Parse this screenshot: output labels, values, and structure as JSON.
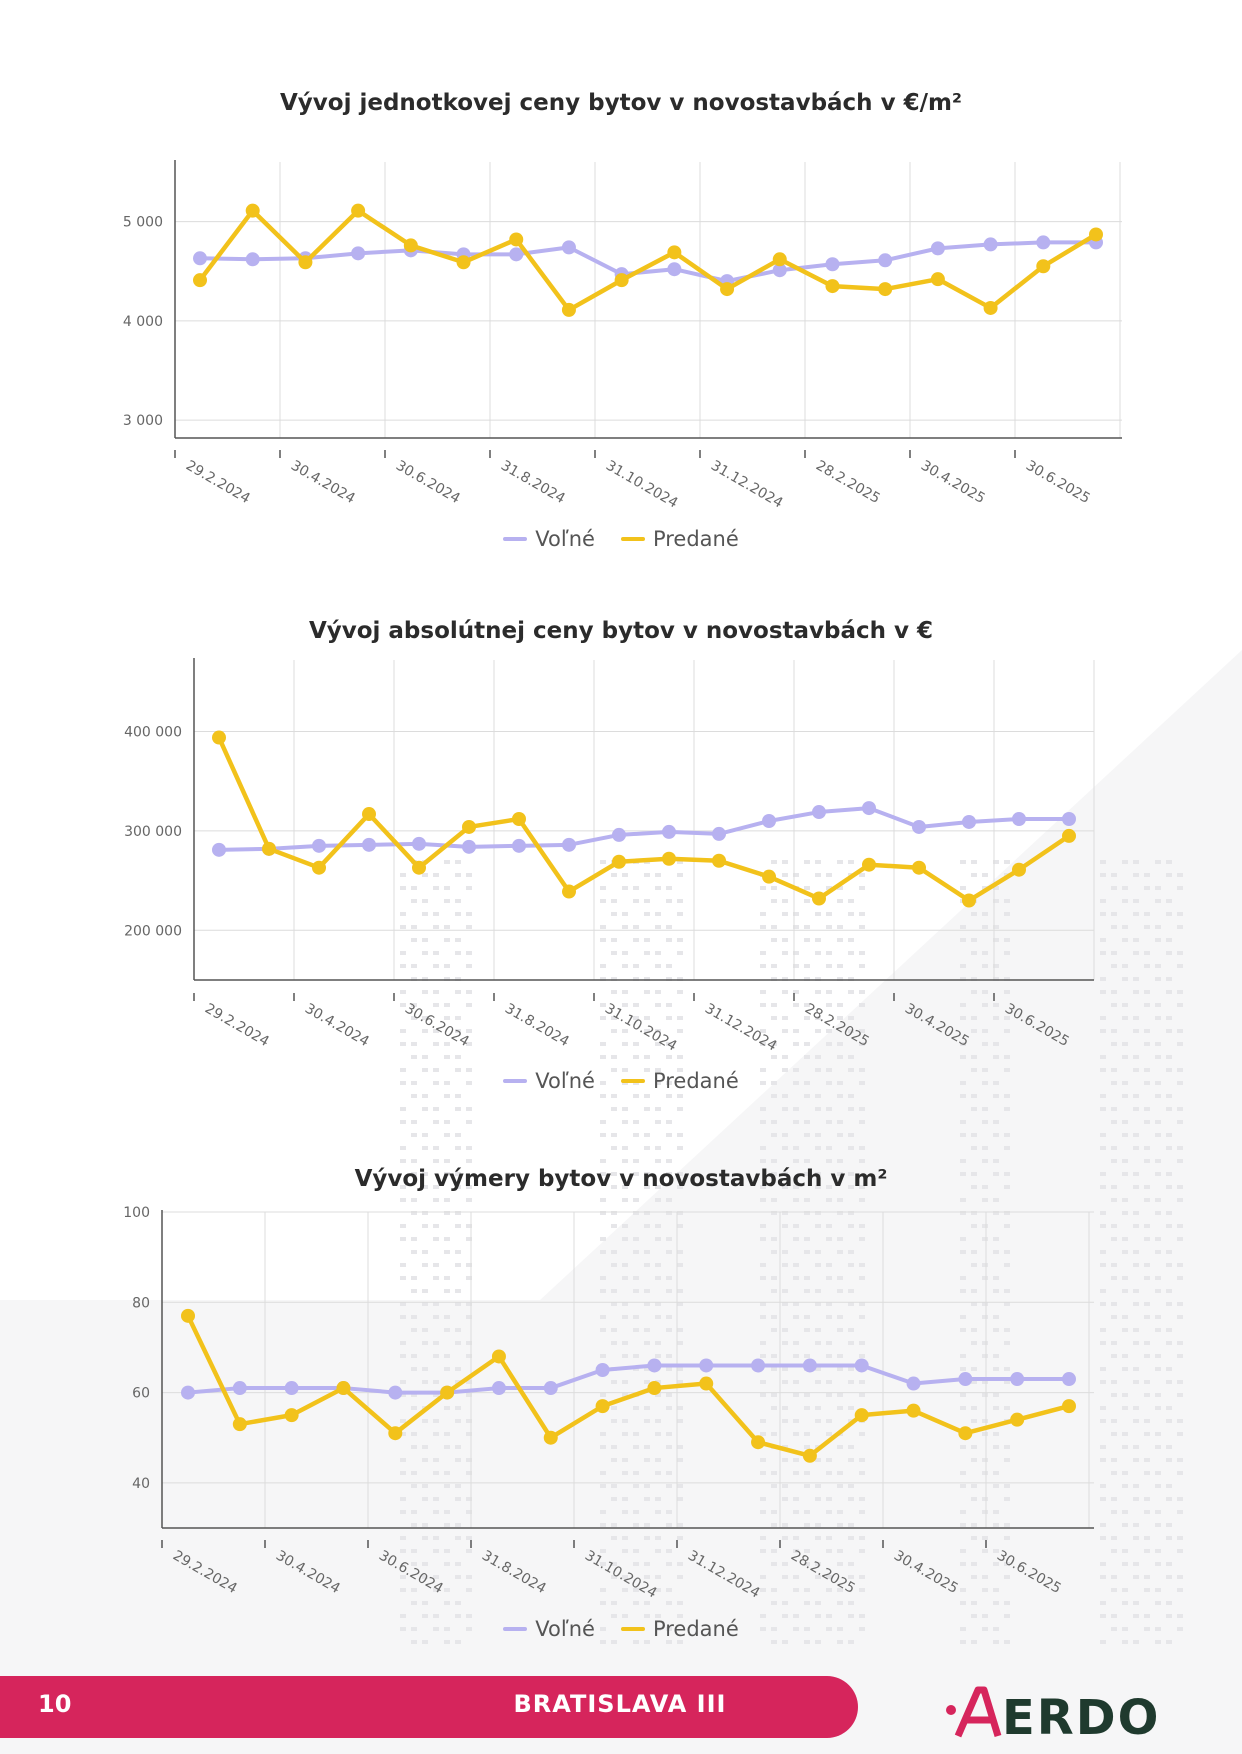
{
  "page_number": "10",
  "footer_title": "BRATISLAVA III",
  "logo_text": "ERDO",
  "colors": {
    "volne": "#b7b1f0",
    "predane": "#f2c21b",
    "footer": "#d6255c",
    "logo": "#1f3a2e"
  },
  "chart_data": [
    {
      "type": "line",
      "title": "Vývoj jednotkovej ceny bytov v novostavbách v €/m²",
      "xlabel": "",
      "ylabel": "",
      "x_tick_labels": [
        "29.2.2024",
        "30.4.2024",
        "30.6.2024",
        "31.8.2024",
        "31.10.2024",
        "31.12.2024",
        "28.2.2025",
        "30.4.2025",
        "30.6.2025"
      ],
      "y_ticks": [
        3000,
        4000,
        5000
      ],
      "y_tick_labels": [
        "3 000",
        "4 000",
        "5 000"
      ],
      "ylim": [
        2820,
        5600
      ],
      "n_points": 18,
      "grid": true,
      "legend_position": "bottom",
      "series": [
        {
          "name": "Voľné",
          "values": [
            4630,
            4620,
            4630,
            4680,
            4710,
            4670,
            4670,
            4740,
            4470,
            4520,
            4400,
            4510,
            4570,
            4610,
            4730,
            4770,
            4790,
            4790
          ]
        },
        {
          "name": "Predané",
          "values": [
            4410,
            5110,
            4590,
            5110,
            4760,
            4590,
            4820,
            4110,
            4410,
            4690,
            4320,
            4620,
            4350,
            4320,
            4420,
            4130,
            4550,
            4870
          ]
        }
      ]
    },
    {
      "type": "line",
      "title": "Vývoj absolútnej ceny bytov v novostavbách v €",
      "xlabel": "",
      "ylabel": "",
      "x_tick_labels": [
        "29.2.2024",
        "30.4.2024",
        "30.6.2024",
        "31.8.2024",
        "31.10.2024",
        "31.12.2024",
        "28.2.2025",
        "30.4.2025",
        "30.6.2025"
      ],
      "y_ticks": [
        200000,
        300000,
        400000
      ],
      "y_tick_labels": [
        "200 000",
        "300 000",
        "400 000"
      ],
      "ylim": [
        150000,
        472000
      ],
      "n_points": 18,
      "grid": true,
      "legend_position": "bottom",
      "series": [
        {
          "name": "Voľné",
          "values": [
            281000,
            282000,
            285000,
            286000,
            287000,
            284000,
            285000,
            286000,
            296000,
            299000,
            297000,
            310000,
            319000,
            323000,
            304000,
            309000,
            312000,
            312000
          ]
        },
        {
          "name": "Predané",
          "values": [
            394000,
            282000,
            263000,
            317000,
            263000,
            304000,
            312000,
            239000,
            269000,
            272000,
            270000,
            254000,
            232000,
            266000,
            263000,
            230000,
            261000,
            295000
          ]
        }
      ]
    },
    {
      "type": "line",
      "title": "Vývoj výmery bytov v novostavbách v m²",
      "xlabel": "",
      "ylabel": "",
      "x_tick_labels": [
        "29.2.2024",
        "30.4.2024",
        "30.6.2024",
        "31.8.2024",
        "31.10.2024",
        "31.12.2024",
        "28.2.2025",
        "30.4.2025",
        "30.6.2025"
      ],
      "y_ticks": [
        40,
        60,
        80,
        100
      ],
      "y_tick_labels": [
        "40",
        "60",
        "80",
        "100"
      ],
      "ylim": [
        30,
        100
      ],
      "n_points": 18,
      "grid": true,
      "legend_position": "bottom",
      "series": [
        {
          "name": "Voľné",
          "values": [
            60,
            61,
            61,
            61,
            60,
            60,
            61,
            61,
            65,
            66,
            66,
            66,
            66,
            66,
            62,
            63,
            63,
            63
          ]
        },
        {
          "name": "Predané",
          "values": [
            77,
            53,
            55,
            61,
            51,
            60,
            68,
            50,
            57,
            61,
            62,
            49,
            46,
            55,
            56,
            51,
            54,
            57
          ]
        }
      ]
    }
  ]
}
